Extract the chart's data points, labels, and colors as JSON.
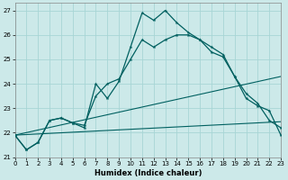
{
  "xlabel": "Humidex (Indice chaleur)",
  "xlim": [
    0,
    23
  ],
  "ylim": [
    21.0,
    27.3
  ],
  "yticks": [
    21,
    22,
    23,
    24,
    25,
    26,
    27
  ],
  "xticks": [
    0,
    1,
    2,
    3,
    4,
    5,
    6,
    7,
    8,
    9,
    10,
    11,
    12,
    13,
    14,
    15,
    16,
    17,
    18,
    19,
    20,
    21,
    22,
    23
  ],
  "bg_color": "#cce9e9",
  "grid_color": "#a8d5d5",
  "line_color": "#006060",
  "line1_y": [
    21.9,
    21.3,
    21.6,
    22.5,
    22.6,
    22.4,
    22.2,
    24.0,
    23.4,
    24.1,
    25.5,
    26.9,
    26.6,
    27.0,
    26.5,
    26.1,
    25.8,
    25.3,
    25.1,
    24.3,
    23.4,
    23.1,
    22.9,
    21.9
  ],
  "line2_y": [
    21.9,
    21.3,
    21.6,
    22.5,
    22.6,
    22.4,
    22.3,
    23.5,
    24.0,
    24.2,
    25.0,
    25.8,
    25.5,
    25.8,
    26.0,
    26.0,
    25.8,
    25.5,
    25.2,
    24.3,
    23.6,
    23.2,
    22.5,
    22.2
  ],
  "line3_y": [
    21.9,
    22.45
  ],
  "line3_x": [
    0,
    23
  ],
  "line4_y": [
    21.9,
    24.3
  ],
  "line4_x": [
    0,
    23
  ]
}
